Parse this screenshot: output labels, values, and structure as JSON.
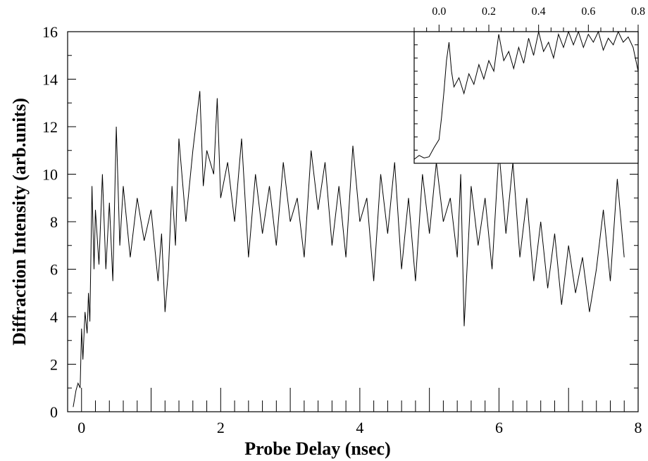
{
  "chart_data": [
    {
      "type": "line",
      "xlabel": "Probe Delay (nsec)",
      "ylabel": "Diffraction Intensity (arb.units)",
      "xlim": [
        -0.2,
        8
      ],
      "ylim": [
        0,
        16
      ],
      "xticks": [
        "0",
        "2",
        "4",
        "6",
        "8"
      ],
      "yticks": [
        "0",
        "2",
        "4",
        "6",
        "8",
        "10",
        "12",
        "14",
        "16"
      ],
      "grid": false,
      "series": [
        {
          "x": [
            -0.12,
            -0.08,
            -0.05,
            -0.02,
            0.0,
            0.02,
            0.05,
            0.08,
            0.1,
            0.12,
            0.15,
            0.18,
            0.2,
            0.25,
            0.3,
            0.35,
            0.4,
            0.45,
            0.5,
            0.55,
            0.6,
            0.7,
            0.8,
            0.9,
            1.0,
            1.1,
            1.15,
            1.2,
            1.25,
            1.3,
            1.35,
            1.4,
            1.5,
            1.6,
            1.7,
            1.75,
            1.8,
            1.9,
            1.95,
            2.0,
            2.1,
            2.2,
            2.3,
            2.4,
            2.5,
            2.6,
            2.7,
            2.8,
            2.9,
            3.0,
            3.1,
            3.2,
            3.3,
            3.4,
            3.5,
            3.6,
            3.7,
            3.8,
            3.9,
            4.0,
            4.1,
            4.2,
            4.3,
            4.4,
            4.5,
            4.6,
            4.7,
            4.8,
            4.9,
            5.0,
            5.1,
            5.2,
            5.3,
            5.4,
            5.45,
            5.5,
            5.6,
            5.7,
            5.8,
            5.9,
            6.0,
            6.1,
            6.2,
            6.3,
            6.4,
            6.5,
            6.6,
            6.7,
            6.8,
            6.9,
            7.0,
            7.1,
            7.2,
            7.3,
            7.4,
            7.5,
            7.6,
            7.7,
            7.8
          ],
          "y": [
            0.2,
            0.9,
            1.2,
            1.0,
            3.5,
            2.2,
            4.2,
            3.3,
            5.0,
            3.8,
            9.5,
            6.0,
            8.5,
            6.2,
            10.0,
            6.0,
            8.8,
            5.5,
            12.0,
            7.0,
            9.5,
            6.5,
            9.0,
            7.2,
            8.5,
            5.5,
            7.5,
            4.2,
            6.0,
            9.5,
            7.0,
            11.5,
            8.0,
            11.0,
            13.5,
            9.5,
            11.0,
            10.0,
            13.2,
            9.0,
            10.5,
            8.0,
            11.5,
            6.5,
            10.0,
            7.5,
            9.5,
            7.0,
            10.5,
            8.0,
            9.0,
            6.5,
            11.0,
            8.5,
            10.5,
            7.0,
            9.5,
            6.5,
            11.2,
            8.0,
            9.0,
            5.5,
            10.0,
            7.5,
            10.5,
            6.0,
            9.0,
            5.5,
            10.0,
            7.5,
            10.5,
            8.0,
            9.0,
            6.5,
            10.0,
            3.6,
            9.5,
            7.0,
            9.0,
            6.0,
            11.0,
            7.5,
            10.5,
            6.5,
            9.0,
            5.5,
            8.0,
            5.2,
            7.5,
            4.5,
            7.0,
            5.0,
            6.5,
            4.2,
            6.0,
            8.5,
            5.5,
            9.8,
            6.5
          ]
        }
      ]
    },
    {
      "type": "line",
      "title": "",
      "xlim": [
        -0.1,
        0.8
      ],
      "xticks": [
        "0.0",
        "0.2",
        "0.4",
        "0.6",
        "0.8"
      ],
      "ylim": [
        0,
        10
      ],
      "grid": false,
      "series": [
        {
          "x": [
            -0.1,
            -0.08,
            -0.06,
            -0.04,
            -0.02,
            0.0,
            0.01,
            0.02,
            0.03,
            0.04,
            0.05,
            0.06,
            0.08,
            0.1,
            0.12,
            0.14,
            0.16,
            0.18,
            0.2,
            0.22,
            0.24,
            0.26,
            0.28,
            0.3,
            0.32,
            0.34,
            0.36,
            0.38,
            0.4,
            0.42,
            0.44,
            0.46,
            0.48,
            0.5,
            0.52,
            0.54,
            0.56,
            0.58,
            0.6,
            0.62,
            0.64,
            0.66,
            0.68,
            0.7,
            0.72,
            0.74,
            0.76,
            0.78,
            0.8
          ],
          "y": [
            0.3,
            0.6,
            0.4,
            0.5,
            1.2,
            1.8,
            3.5,
            5.5,
            7.8,
            9.2,
            7.0,
            5.8,
            6.5,
            5.3,
            6.8,
            6.0,
            7.5,
            6.4,
            7.8,
            7.0,
            9.8,
            7.8,
            8.5,
            7.2,
            8.8,
            7.6,
            9.5,
            8.2,
            10.0,
            8.5,
            9.2,
            8.0,
            9.8,
            8.8,
            10.0,
            9.0,
            10.0,
            8.8,
            9.8,
            9.2,
            10.0,
            8.6,
            9.5,
            9.0,
            10.0,
            9.2,
            9.6,
            8.8,
            7.0
          ]
        }
      ]
    }
  ]
}
